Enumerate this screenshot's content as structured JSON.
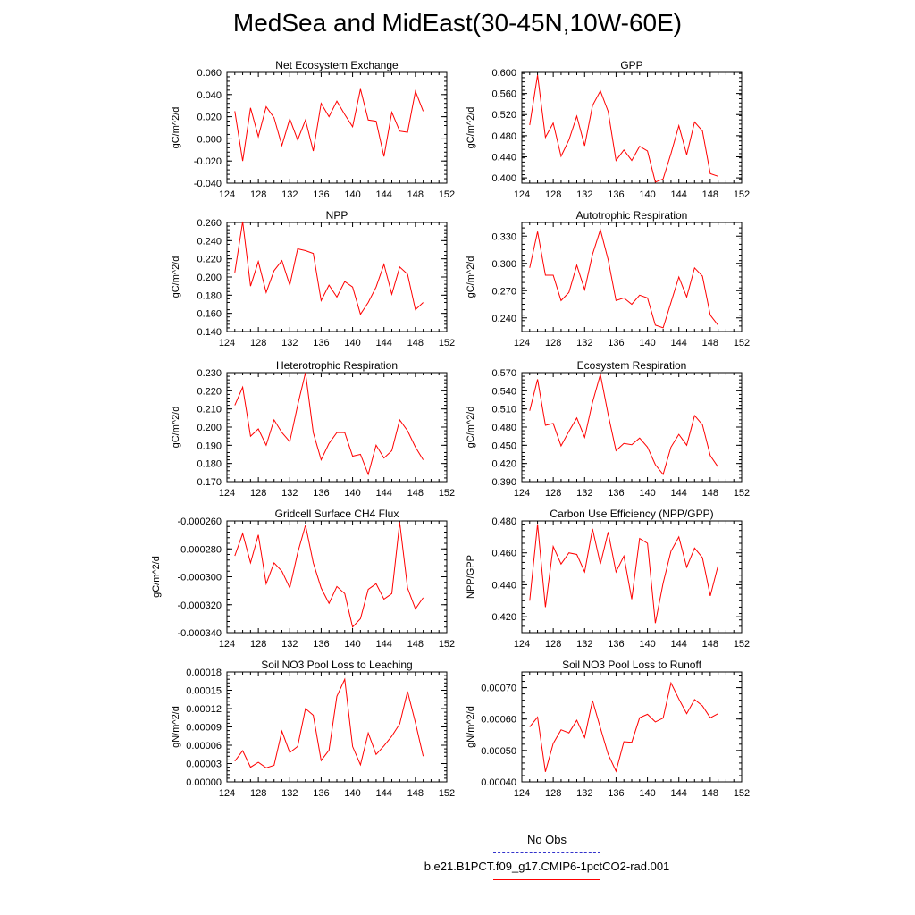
{
  "figure": {
    "title": "MedSea and MidEast(30-45N,10W-60E)"
  },
  "legend": {
    "items": [
      {
        "label": "No Obs",
        "color": "#3333cc",
        "style": "dashed"
      },
      {
        "label": "b.e21.B1PCT.f09_g17.CMIP6-1pctCO2-rad.001",
        "color": "#ff0000",
        "style": "solid"
      }
    ]
  },
  "chart_data": [
    {
      "type": "line",
      "title": "Net Ecosystem Exchange",
      "ylabel": "gC/m^2/d",
      "xlim": [
        124,
        152
      ],
      "xticks": [
        124,
        128,
        132,
        136,
        140,
        144,
        148,
        152
      ],
      "ylim": [
        -0.04,
        0.06
      ],
      "yticks": [
        -0.04,
        -0.02,
        0.0,
        0.02,
        0.04,
        0.06
      ],
      "ydecimals": 3,
      "x": [
        125,
        126,
        127,
        128,
        129,
        130,
        131,
        132,
        133,
        134,
        135,
        136,
        137,
        138,
        139,
        140,
        141,
        142,
        143,
        144,
        145,
        146,
        147,
        148,
        149
      ],
      "series": [
        {
          "name": "b.e21.B1PCT.f09_g17.CMIP6-1pctCO2-rad.001",
          "color": "#ff0000",
          "values": [
            0.025,
            -0.02,
            0.028,
            0.002,
            0.029,
            0.019,
            -0.006,
            0.018,
            -0.001,
            0.017,
            -0.011,
            0.032,
            0.02,
            0.034,
            0.022,
            0.011,
            0.045,
            0.017,
            0.016,
            -0.016,
            0.024,
            0.007,
            0.006,
            0.043,
            0.025
          ]
        }
      ]
    },
    {
      "type": "line",
      "title": "GPP",
      "ylabel": "gC/m^2/d",
      "xlim": [
        124,
        152
      ],
      "xticks": [
        124,
        128,
        132,
        136,
        140,
        144,
        148,
        152
      ],
      "ylim": [
        0.39,
        0.6
      ],
      "yticks": [
        0.4,
        0.44,
        0.48,
        0.52,
        0.56,
        0.6
      ],
      "ydecimals": 3,
      "x": [
        125,
        126,
        127,
        128,
        129,
        130,
        131,
        132,
        133,
        134,
        135,
        136,
        137,
        138,
        139,
        140,
        141,
        142,
        143,
        144,
        145,
        146,
        147,
        148,
        149
      ],
      "series": [
        {
          "name": "b.e21.B1PCT.f09_g17.CMIP6-1pctCO2-rad.001",
          "color": "#ff0000",
          "values": [
            0.5,
            0.595,
            0.477,
            0.504,
            0.441,
            0.472,
            0.517,
            0.461,
            0.537,
            0.565,
            0.526,
            0.433,
            0.453,
            0.433,
            0.46,
            0.451,
            0.392,
            0.398,
            0.446,
            0.499,
            0.444,
            0.506,
            0.489,
            0.408,
            0.403
          ]
        }
      ]
    },
    {
      "type": "line",
      "title": "NPP",
      "ylabel": "gC/m^2/d",
      "xlim": [
        124,
        152
      ],
      "xticks": [
        124,
        128,
        132,
        136,
        140,
        144,
        148,
        152
      ],
      "ylim": [
        0.14,
        0.26
      ],
      "yticks": [
        0.14,
        0.16,
        0.18,
        0.2,
        0.22,
        0.24,
        0.26
      ],
      "ydecimals": 3,
      "x": [
        125,
        126,
        127,
        128,
        129,
        130,
        131,
        132,
        133,
        134,
        135,
        136,
        137,
        138,
        139,
        140,
        141,
        142,
        143,
        144,
        145,
        146,
        147,
        148,
        149
      ],
      "series": [
        {
          "name": "b.e21.B1PCT.f09_g17.CMIP6-1pctCO2-rad.001",
          "color": "#ff0000",
          "values": [
            0.205,
            0.261,
            0.19,
            0.217,
            0.183,
            0.207,
            0.218,
            0.191,
            0.231,
            0.229,
            0.226,
            0.174,
            0.191,
            0.178,
            0.195,
            0.189,
            0.159,
            0.172,
            0.189,
            0.214,
            0.181,
            0.211,
            0.203,
            0.164,
            0.172
          ]
        }
      ]
    },
    {
      "type": "line",
      "title": "Autotrophic Respiration",
      "ylabel": "gC/m^2/d",
      "xlim": [
        124,
        152
      ],
      "xticks": [
        124,
        128,
        132,
        136,
        140,
        144,
        148,
        152
      ],
      "ylim": [
        0.225,
        0.345
      ],
      "yticks": [
        0.24,
        0.27,
        0.3,
        0.33
      ],
      "ydecimals": 3,
      "x": [
        125,
        126,
        127,
        128,
        129,
        130,
        131,
        132,
        133,
        134,
        135,
        136,
        137,
        138,
        139,
        140,
        141,
        142,
        143,
        144,
        145,
        146,
        147,
        148,
        149
      ],
      "series": [
        {
          "name": "b.e21.B1PCT.f09_g17.CMIP6-1pctCO2-rad.001",
          "color": "#ff0000",
          "values": [
            0.295,
            0.335,
            0.287,
            0.287,
            0.259,
            0.268,
            0.298,
            0.271,
            0.31,
            0.337,
            0.304,
            0.259,
            0.262,
            0.255,
            0.265,
            0.262,
            0.232,
            0.229,
            0.257,
            0.285,
            0.263,
            0.295,
            0.286,
            0.243,
            0.232
          ]
        }
      ]
    },
    {
      "type": "line",
      "title": "Heterotrophic Respiration",
      "ylabel": "gC/m^2/d",
      "xlim": [
        124,
        152
      ],
      "xticks": [
        124,
        128,
        132,
        136,
        140,
        144,
        148,
        152
      ],
      "ylim": [
        0.17,
        0.23
      ],
      "yticks": [
        0.17,
        0.18,
        0.19,
        0.2,
        0.21,
        0.22,
        0.23
      ],
      "ydecimals": 3,
      "x": [
        125,
        126,
        127,
        128,
        129,
        130,
        131,
        132,
        133,
        134,
        135,
        136,
        137,
        138,
        139,
        140,
        141,
        142,
        143,
        144,
        145,
        146,
        147,
        148,
        149
      ],
      "series": [
        {
          "name": "b.e21.B1PCT.f09_g17.CMIP6-1pctCO2-rad.001",
          "color": "#ff0000",
          "values": [
            0.212,
            0.222,
            0.195,
            0.199,
            0.19,
            0.204,
            0.197,
            0.192,
            0.212,
            0.23,
            0.197,
            0.182,
            0.191,
            0.197,
            0.197,
            0.184,
            0.185,
            0.174,
            0.19,
            0.183,
            0.187,
            0.204,
            0.198,
            0.189,
            0.182
          ]
        }
      ]
    },
    {
      "type": "line",
      "title": "Ecosystem Respiration",
      "ylabel": "gC/m^2/d",
      "xlim": [
        124,
        152
      ],
      "xticks": [
        124,
        128,
        132,
        136,
        140,
        144,
        148,
        152
      ],
      "ylim": [
        0.39,
        0.57
      ],
      "yticks": [
        0.39,
        0.42,
        0.45,
        0.48,
        0.51,
        0.54,
        0.57
      ],
      "ydecimals": 3,
      "x": [
        125,
        126,
        127,
        128,
        129,
        130,
        131,
        132,
        133,
        134,
        135,
        136,
        137,
        138,
        139,
        140,
        141,
        142,
        143,
        144,
        145,
        146,
        147,
        148,
        149
      ],
      "series": [
        {
          "name": "b.e21.B1PCT.f09_g17.CMIP6-1pctCO2-rad.001",
          "color": "#ff0000",
          "values": [
            0.507,
            0.559,
            0.483,
            0.486,
            0.449,
            0.473,
            0.495,
            0.463,
            0.521,
            0.567,
            0.501,
            0.441,
            0.453,
            0.451,
            0.462,
            0.447,
            0.418,
            0.402,
            0.447,
            0.468,
            0.45,
            0.499,
            0.484,
            0.433,
            0.414
          ]
        }
      ]
    },
    {
      "type": "line",
      "title": "Gridcell Surface CH4 Flux",
      "ylabel": "gC/m^2/d",
      "xlim": [
        124,
        152
      ],
      "xticks": [
        124,
        128,
        132,
        136,
        140,
        144,
        148,
        152
      ],
      "ylim": [
        -0.00034,
        -0.00026
      ],
      "yticks": [
        -0.00034,
        -0.00032,
        -0.0003,
        -0.00028,
        -0.00026
      ],
      "ydecimals": 6,
      "x": [
        125,
        126,
        127,
        128,
        129,
        130,
        131,
        132,
        133,
        134,
        135,
        136,
        137,
        138,
        139,
        140,
        141,
        142,
        143,
        144,
        145,
        146,
        147,
        148,
        149
      ],
      "series": [
        {
          "name": "b.e21.B1PCT.f09_g17.CMIP6-1pctCO2-rad.001",
          "color": "#ff0000",
          "values": [
            -0.000285,
            -0.000269,
            -0.00029,
            -0.00027,
            -0.000305,
            -0.00029,
            -0.000296,
            -0.000308,
            -0.000283,
            -0.000263,
            -0.00029,
            -0.000308,
            -0.000319,
            -0.000307,
            -0.000312,
            -0.000336,
            -0.00033,
            -0.000309,
            -0.000305,
            -0.000316,
            -0.000312,
            -0.000261,
            -0.000308,
            -0.000323,
            -0.000315
          ]
        }
      ]
    },
    {
      "type": "line",
      "title": "Carbon Use Efficiency (NPP/GPP)",
      "ylabel": "NPP/GPP",
      "xlim": [
        124,
        152
      ],
      "xticks": [
        124,
        128,
        132,
        136,
        140,
        144,
        148,
        152
      ],
      "ylim": [
        0.41,
        0.48
      ],
      "yticks": [
        0.42,
        0.44,
        0.46,
        0.48
      ],
      "ydecimals": 3,
      "x": [
        125,
        126,
        127,
        128,
        129,
        130,
        131,
        132,
        133,
        134,
        135,
        136,
        137,
        138,
        139,
        140,
        141,
        142,
        143,
        144,
        145,
        146,
        147,
        148,
        149
      ],
      "series": [
        {
          "name": "b.e21.B1PCT.f09_g17.CMIP6-1pctCO2-rad.001",
          "color": "#ff0000",
          "values": [
            0.43,
            0.478,
            0.426,
            0.464,
            0.453,
            0.46,
            0.459,
            0.448,
            0.475,
            0.453,
            0.473,
            0.448,
            0.458,
            0.431,
            0.469,
            0.466,
            0.416,
            0.441,
            0.461,
            0.47,
            0.451,
            0.463,
            0.457,
            0.433,
            0.452
          ]
        }
      ]
    },
    {
      "type": "line",
      "title": "Soil NO3 Pool Loss to Leaching",
      "ylabel": "gN/m^2/d",
      "xlim": [
        124,
        152
      ],
      "xticks": [
        124,
        128,
        132,
        136,
        140,
        144,
        148,
        152
      ],
      "ylim": [
        0.0,
        0.00018
      ],
      "yticks": [
        0.0,
        3e-05,
        6e-05,
        9e-05,
        0.00012,
        0.00015,
        0.00018
      ],
      "ydecimals": 5,
      "x": [
        125,
        126,
        127,
        128,
        129,
        130,
        131,
        132,
        133,
        134,
        135,
        136,
        137,
        138,
        139,
        140,
        141,
        142,
        143,
        144,
        145,
        146,
        147,
        148,
        149
      ],
      "series": [
        {
          "name": "b.e21.B1PCT.f09_g17.CMIP6-1pctCO2-rad.001",
          "color": "#ff0000",
          "values": [
            3.4e-05,
            5.1e-05,
            2.4e-05,
            3.2e-05,
            2.3e-05,
            2.7e-05,
            8.3e-05,
            4.8e-05,
            5.8e-05,
            0.00012,
            0.000109,
            3.5e-05,
            5.2e-05,
            0.00014,
            0.000168,
            5.8e-05,
            2.8e-05,
            8e-05,
            4.5e-05,
            5.9e-05,
            7.5e-05,
            9.5e-05,
            0.000148,
            9.7e-05,
            4.2e-05
          ]
        }
      ]
    },
    {
      "type": "line",
      "title": "Soil NO3 Pool Loss to Runoff",
      "ylabel": "gN/m^2/d",
      "xlim": [
        124,
        152
      ],
      "xticks": [
        124,
        128,
        132,
        136,
        140,
        144,
        148,
        152
      ],
      "ylim": [
        0.0004,
        0.00075
      ],
      "yticks": [
        0.0004,
        0.0005,
        0.0006,
        0.0007
      ],
      "ydecimals": 5,
      "x": [
        125,
        126,
        127,
        128,
        129,
        130,
        131,
        132,
        133,
        134,
        135,
        136,
        137,
        138,
        139,
        140,
        141,
        142,
        143,
        144,
        145,
        146,
        147,
        148,
        149
      ],
      "series": [
        {
          "name": "b.e21.B1PCT.f09_g17.CMIP6-1pctCO2-rad.001",
          "color": "#ff0000",
          "values": [
            0.000575,
            0.000606,
            0.000432,
            0.000522,
            0.000566,
            0.000556,
            0.000596,
            0.000541,
            0.000659,
            0.000572,
            0.000488,
            0.000434,
            0.000528,
            0.000526,
            0.000604,
            0.000615,
            0.000591,
            0.000603,
            0.000715,
            0.000664,
            0.000617,
            0.000662,
            0.000642,
            0.000604,
            0.000617
          ]
        }
      ]
    }
  ]
}
